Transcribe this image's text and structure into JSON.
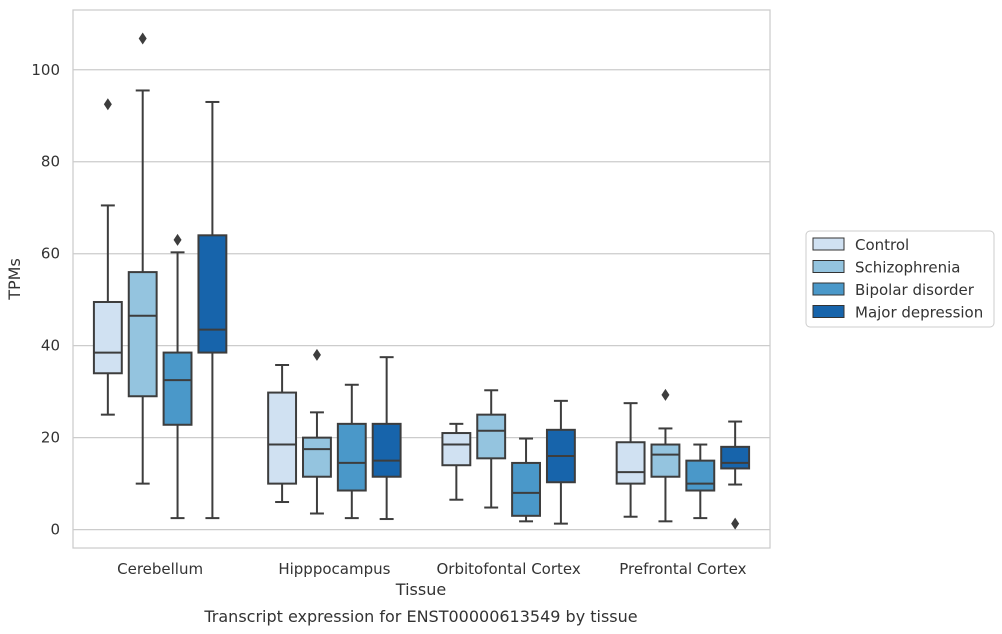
{
  "chart_data": {
    "type": "box",
    "xlabel": "Tissue",
    "ylabel": "TPMs",
    "caption": "Transcript expression for ENST00000613549 by tissue",
    "ylim": [
      -4,
      113
    ],
    "yticks": [
      0,
      20,
      40,
      60,
      80,
      100
    ],
    "grid": true,
    "legend_position": "right",
    "categories": [
      "Cerebellum",
      "Hipppocampus",
      "Orbitofontal Cortex",
      "Prefrontal Cortex"
    ],
    "series": [
      {
        "name": "Control",
        "color": "#d0e1f2",
        "boxes": [
          {
            "whisker_low": 25,
            "q1": 34,
            "median": 38.5,
            "q3": 49.5,
            "whisker_high": 70.5,
            "outliers": [
              92.5
            ]
          },
          {
            "whisker_low": 6,
            "q1": 10,
            "median": 18.5,
            "q3": 29.8,
            "whisker_high": 35.8,
            "outliers": []
          },
          {
            "whisker_low": 6.5,
            "q1": 14,
            "median": 18.5,
            "q3": 21,
            "whisker_high": 23,
            "outliers": []
          },
          {
            "whisker_low": 2.8,
            "q1": 10,
            "median": 12.5,
            "q3": 19,
            "whisker_high": 27.5,
            "outliers": []
          }
        ]
      },
      {
        "name": "Schizophrenia",
        "color": "#94c4df",
        "boxes": [
          {
            "whisker_low": 10,
            "q1": 29,
            "median": 46.5,
            "q3": 56,
            "whisker_high": 95.5,
            "outliers": [
              106.8
            ]
          },
          {
            "whisker_low": 3.5,
            "q1": 11.5,
            "median": 17.5,
            "q3": 20,
            "whisker_high": 25.5,
            "outliers": [
              38
            ]
          },
          {
            "whisker_low": 4.8,
            "q1": 15.5,
            "median": 21.5,
            "q3": 25,
            "whisker_high": 30.3,
            "outliers": []
          },
          {
            "whisker_low": 1.8,
            "q1": 11.5,
            "median": 16.3,
            "q3": 18.5,
            "whisker_high": 22,
            "outliers": [
              29.3
            ]
          }
        ]
      },
      {
        "name": "Bipolar disorder",
        "color": "#4a98c9",
        "boxes": [
          {
            "whisker_low": 2.5,
            "q1": 22.8,
            "median": 32.5,
            "q3": 38.5,
            "whisker_high": 60.3,
            "outliers": [
              63
            ]
          },
          {
            "whisker_low": 2.5,
            "q1": 8.5,
            "median": 14.5,
            "q3": 23,
            "whisker_high": 31.5,
            "outliers": []
          },
          {
            "whisker_low": 1.8,
            "q1": 3,
            "median": 8,
            "q3": 14.5,
            "whisker_high": 19.8,
            "outliers": []
          },
          {
            "whisker_low": 2.5,
            "q1": 8.5,
            "median": 10,
            "q3": 15,
            "whisker_high": 18.5,
            "outliers": []
          }
        ]
      },
      {
        "name": "Major depression",
        "color": "#1764ab",
        "boxes": [
          {
            "whisker_low": 2.5,
            "q1": 38.5,
            "median": 43.5,
            "q3": 64,
            "whisker_high": 93,
            "outliers": []
          },
          {
            "whisker_low": 2.3,
            "q1": 11.5,
            "median": 15,
            "q3": 23,
            "whisker_high": 37.5,
            "outliers": []
          },
          {
            "whisker_low": 1.3,
            "q1": 10.3,
            "median": 16,
            "q3": 21.7,
            "whisker_high": 28,
            "outliers": []
          },
          {
            "whisker_low": 9.8,
            "q1": 13.3,
            "median": 14.5,
            "q3": 18,
            "whisker_high": 23.5,
            "outliers": [
              1.3
            ]
          }
        ]
      }
    ]
  }
}
